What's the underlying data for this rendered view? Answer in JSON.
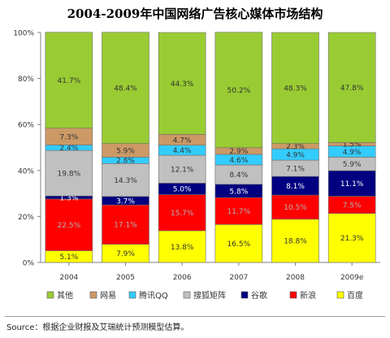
{
  "chart_data": {
    "type": "bar",
    "stacked": true,
    "title": "2004-2009年中国网络广告核心媒体市场结构",
    "categories": [
      "2004",
      "2005",
      "2006",
      "2007",
      "2008",
      "2009e"
    ],
    "ylim": [
      0,
      100
    ],
    "ytick_labels": [
      "0%",
      "20%",
      "40%",
      "60%",
      "80%",
      "100%"
    ],
    "grid": false,
    "legend_position": "bottom",
    "series": [
      {
        "name": "百度",
        "color": "#ffff00",
        "values": [
          5.1,
          7.9,
          13.8,
          16.5,
          18.8,
          21.3
        ],
        "labels": [
          "5.1%",
          "7.9%",
          "13.8%",
          "16.5%",
          "18.8%",
          "21.3%"
        ]
      },
      {
        "name": "新浪",
        "color": "#ff0000",
        "values": [
          22.5,
          17.1,
          15.7,
          11.7,
          10.5,
          7.5
        ],
        "labels": [
          "22.5%",
          "17.1%",
          "15.7%",
          "11.7%",
          "10.5%",
          "7.5%"
        ]
      },
      {
        "name": "谷歌",
        "color": "#000080",
        "values": [
          1.3,
          3.7,
          5.0,
          5.8,
          8.1,
          11.1
        ],
        "labels": [
          "1.3%",
          "3.7%",
          "5.0%",
          "5.8%",
          "8.1%",
          "11.1%"
        ]
      },
      {
        "name": "搜狐矩阵",
        "color": "#c0c0c0",
        "values": [
          19.8,
          14.3,
          12.1,
          8.4,
          7.1,
          5.9
        ],
        "labels": [
          "19.8%",
          "14.3%",
          "12.1%",
          "8.4%",
          "7.1%",
          "5.9%"
        ]
      },
      {
        "name": "腾讯QQ",
        "color": "#33ccff",
        "values": [
          2.4,
          2.8,
          4.4,
          4.6,
          4.9,
          4.9
        ],
        "labels": [
          "2.4%",
          "2.8%",
          "4.4%",
          "4.6%",
          "4.9%",
          "4.9%"
        ]
      },
      {
        "name": "网易",
        "color": "#cc9966",
        "values": [
          7.3,
          5.9,
          4.7,
          2.9,
          2.3,
          1.5
        ],
        "labels": [
          "7.3%",
          "5.9%",
          "4.7%",
          "2.9%",
          "2.3%",
          "1.5%"
        ]
      },
      {
        "name": "其他",
        "color": "#99cc33",
        "values": [
          41.7,
          48.4,
          44.3,
          50.2,
          48.3,
          47.8
        ],
        "labels": [
          "41.7%",
          "48.4%",
          "44.3%",
          "50.2%",
          "48.3%",
          "47.8%"
        ]
      }
    ],
    "legend_order": [
      "其他",
      "网易",
      "腾讯QQ",
      "搜狐矩阵",
      "谷歌",
      "新浪",
      "百度"
    ]
  },
  "source_text": "Source：根据企业财报及艾瑞统计预测模型估算。"
}
